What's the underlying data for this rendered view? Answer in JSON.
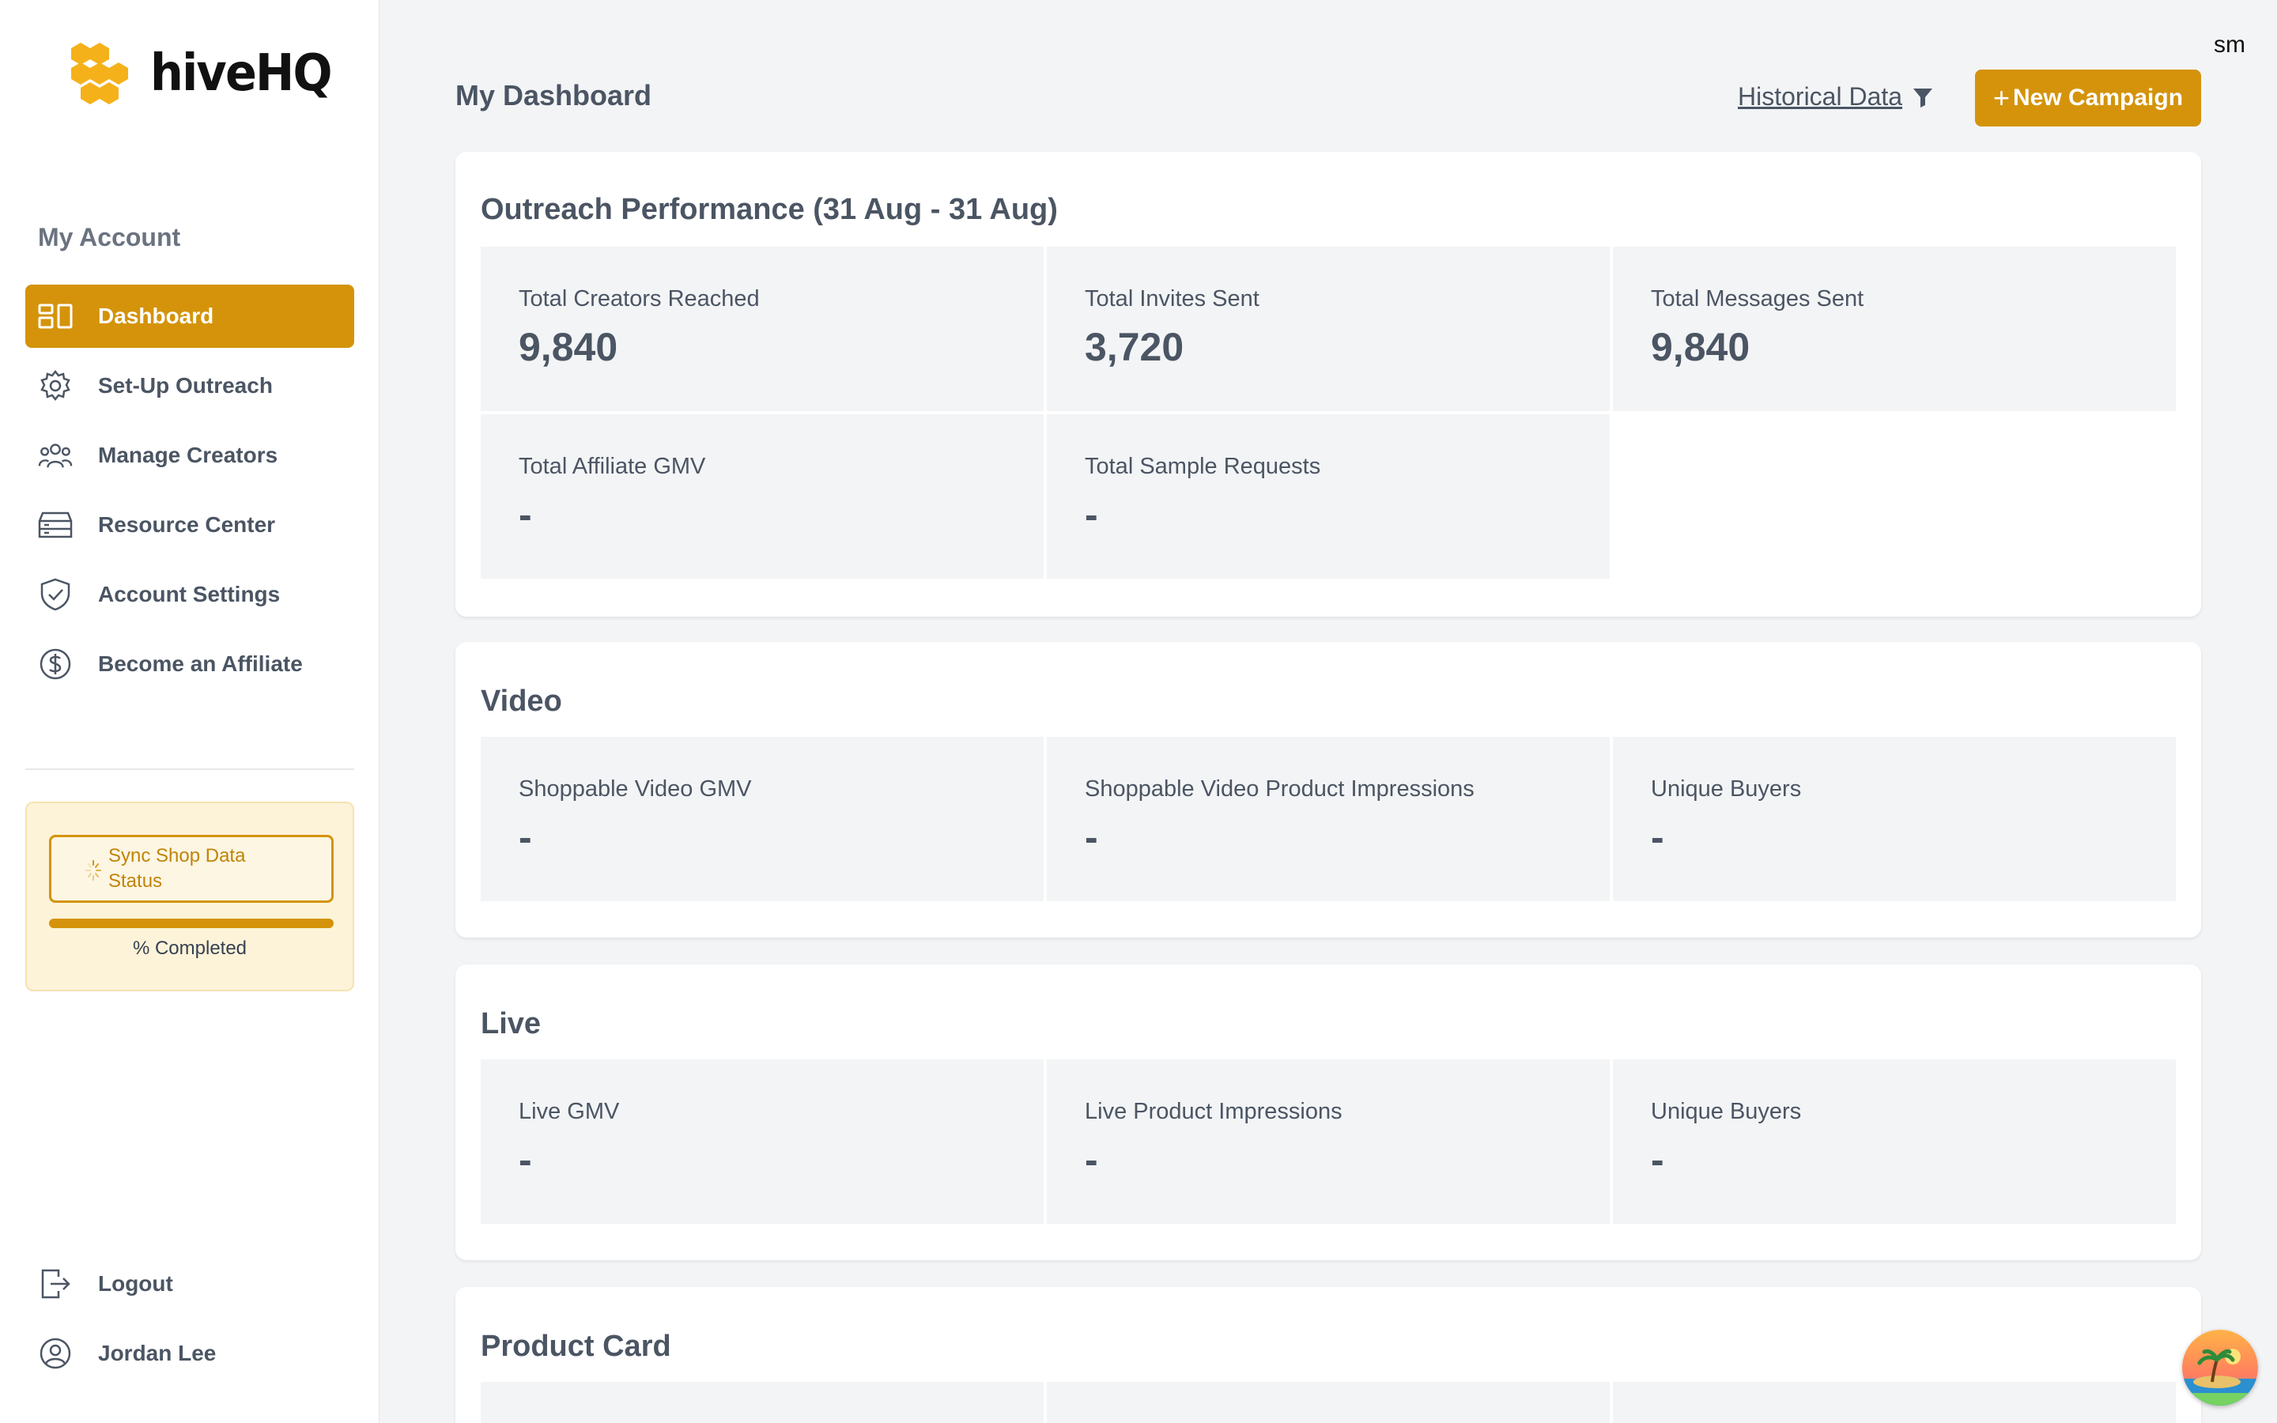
{
  "brand": {
    "name": "hiveHQ",
    "accent": "#d4930a"
  },
  "sidebar": {
    "heading": "My Account",
    "items": [
      {
        "label": "Dashboard",
        "icon": "dashboard-icon",
        "active": true
      },
      {
        "label": "Set-Up Outreach",
        "icon": "gear-icon"
      },
      {
        "label": "Manage Creators",
        "icon": "users-icon"
      },
      {
        "label": "Resource Center",
        "icon": "server-icon"
      },
      {
        "label": "Account Settings",
        "icon": "shield-icon"
      },
      {
        "label": "Become an Affiliate",
        "icon": "dollar-icon"
      }
    ],
    "sync": {
      "label": "Sync Shop Data Status",
      "progress": 100,
      "pct_label": "% Completed"
    },
    "bottom": [
      {
        "label": "Logout",
        "icon": "logout-icon"
      },
      {
        "label": "Jordan Lee",
        "icon": "user-icon"
      }
    ]
  },
  "header": {
    "title": "My Dashboard",
    "historical": "Historical Data",
    "new_campaign": "New Campaign",
    "user_initials": "sm"
  },
  "sections": [
    {
      "title": "Outreach Performance (31 Aug - 31 Aug)",
      "tiles": [
        {
          "label": "Total Creators Reached",
          "value": "9,840"
        },
        {
          "label": "Total Invites Sent",
          "value": "3,720"
        },
        {
          "label": "Total Messages Sent",
          "value": "9,840"
        },
        {
          "label": "Total Affiliate GMV",
          "value": "-"
        },
        {
          "label": "Total Sample Requests",
          "value": "-"
        }
      ]
    },
    {
      "title": "Video",
      "tiles": [
        {
          "label": "Shoppable Video GMV",
          "value": "-"
        },
        {
          "label": "Shoppable Video Product Impressions",
          "value": "-"
        },
        {
          "label": "Unique Buyers",
          "value": "-"
        }
      ]
    },
    {
      "title": "Live",
      "tiles": [
        {
          "label": "Live GMV",
          "value": "-"
        },
        {
          "label": "Live Product Impressions",
          "value": "-"
        },
        {
          "label": "Unique Buyers",
          "value": "-"
        }
      ]
    },
    {
      "title": "Product Card",
      "tiles": []
    }
  ]
}
